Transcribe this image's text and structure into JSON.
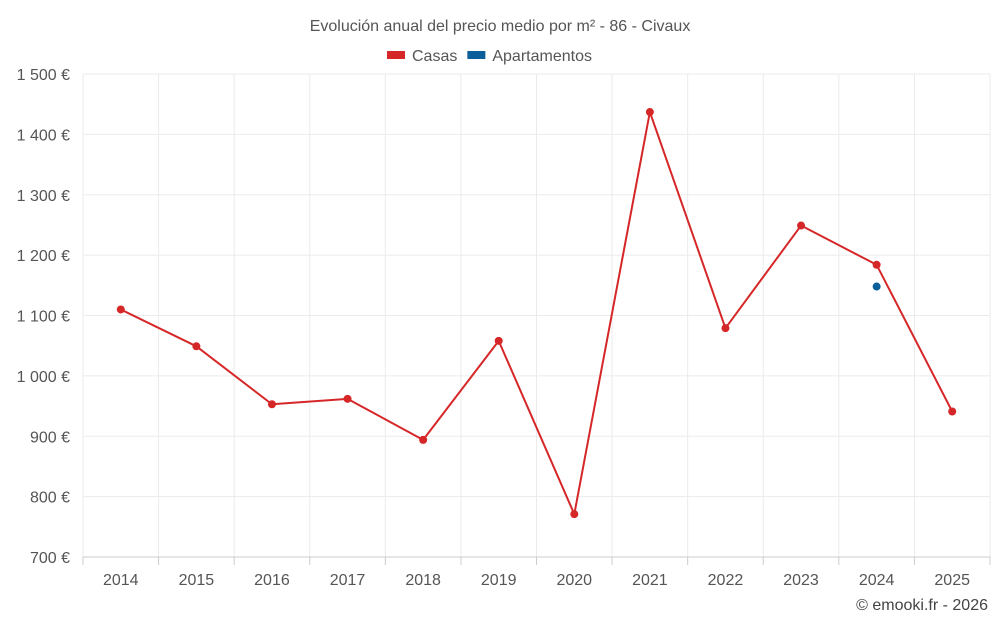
{
  "chart_data": {
    "type": "line",
    "title": "Evolución anual del precio medio por m² - 86 - Civaux",
    "categories": [
      "2014",
      "2015",
      "2016",
      "2017",
      "2018",
      "2019",
      "2020",
      "2021",
      "2022",
      "2023",
      "2024",
      "2025"
    ],
    "series": [
      {
        "name": "Casas",
        "color": "#d62728",
        "values": [
          1110,
          1049,
          953,
          962,
          894,
          1058,
          771,
          1437,
          1079,
          1249,
          1184,
          941
        ]
      },
      {
        "name": "Apartamentos",
        "color": "#0a5f9a",
        "values": [
          null,
          null,
          null,
          null,
          null,
          null,
          null,
          null,
          null,
          null,
          1148,
          null
        ]
      }
    ],
    "ylim": [
      700,
      1500
    ],
    "yticks": [
      700,
      800,
      900,
      1000,
      1100,
      1200,
      1300,
      1400,
      1500
    ],
    "ytick_labels": [
      "700 €",
      "800 €",
      "900 €",
      "1 000 €",
      "1 100 €",
      "1 200 €",
      "1 300 €",
      "1 400 €",
      "1 500 €"
    ],
    "grid": true,
    "legend_position": "top-center"
  },
  "credit": "© emooki.fr - 2026"
}
